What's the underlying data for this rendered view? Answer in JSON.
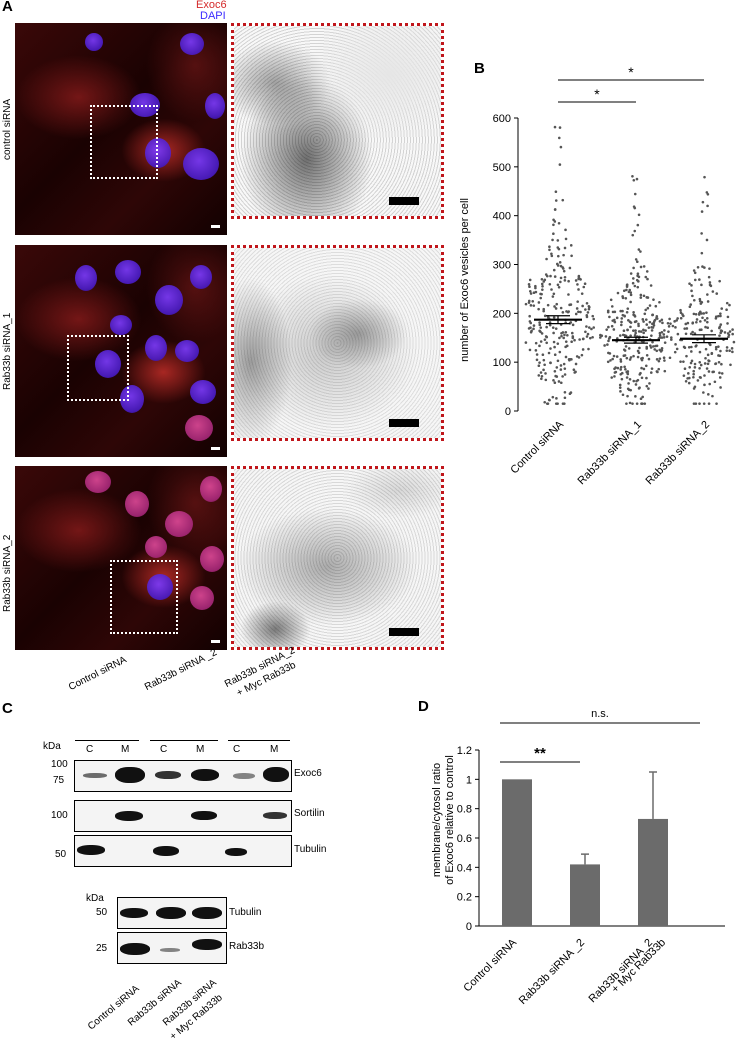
{
  "panelA": {
    "label": "A",
    "legend_exoc6": "Exoc6",
    "legend_dapi": "DAPI",
    "legend_exoc6_color": "#d42a2a",
    "legend_dapi_color": "#3b2bff",
    "rows": [
      "control siRNA",
      "Rab33b siRNA_1",
      "Rab33b siRNA_2"
    ]
  },
  "panelB": {
    "label": "B",
    "ylabel": "number of Exoc6 vesicles per cell",
    "yticks": [
      "0",
      "100",
      "200",
      "300",
      "400",
      "500",
      "600"
    ],
    "categories": [
      "Control siRNA",
      "Rab33b siRNA_1",
      "Rab33b siRNA_2"
    ],
    "sig1": "*",
    "sig2": "*"
  },
  "panelC": {
    "label": "C",
    "kda": "kDa",
    "groups": [
      "Control siRNA",
      "Rab33b siRNA _2",
      "Rab33b siRNA_2",
      "+ Myc Rab33b"
    ],
    "lanes": [
      "C",
      "M",
      "C",
      "M",
      "C",
      "M"
    ],
    "markers_top": [
      "100",
      "75",
      "100",
      "50"
    ],
    "proteins_top": [
      "Exoc6",
      "Sortilin",
      "Tubulin"
    ],
    "kda2": "kDa",
    "markers_bottom": [
      "50",
      "25"
    ],
    "proteins_bottom": [
      "Tubulin",
      "Rab33b"
    ],
    "bottom_lanes": [
      "Control siRNA",
      "Rab33b siRNA",
      "Rab33b siRNA",
      "+ Myc Rab33b"
    ]
  },
  "panelD": {
    "label": "D",
    "ylabel1": "membrane/cytosol ratio",
    "ylabel2": "of Exoc6 relative to control",
    "yticks": [
      "0",
      "0.2",
      "0.4",
      "0.6",
      "0.8",
      "1",
      "1.2"
    ],
    "categories": [
      "Control siRNA",
      "Rab33b siRNA _2",
      "Rab33b siRNA_2",
      "+ Myc Rab33b"
    ],
    "sig1": "**",
    "sig2": "n.s."
  },
  "chart_data": [
    {
      "type": "scatter",
      "ylabel": "number of Exoc6 vesicles per cell",
      "categories": [
        "Control siRNA",
        "Rab33b siRNA_1",
        "Rab33b siRNA_2"
      ],
      "mean": [
        187,
        145,
        148
      ],
      "sem": [
        8,
        6,
        8
      ],
      "ylim": [
        0,
        600
      ],
      "annotations": [
        {
          "between": [
            "Control siRNA",
            "Rab33b siRNA_1"
          ],
          "text": "*"
        },
        {
          "between": [
            "Control siRNA",
            "Rab33b siRNA_2"
          ],
          "text": "*"
        }
      ]
    },
    {
      "type": "bar",
      "ylabel": "membrane/cytosol ratio of Exoc6 relative to control",
      "categories": [
        "Control siRNA",
        "Rab33b siRNA _2",
        "Rab33b siRNA_2 + Myc Rab33b"
      ],
      "values": [
        1.0,
        0.42,
        0.73
      ],
      "errors": [
        0.0,
        0.07,
        0.32
      ],
      "ylim": [
        0,
        1.2
      ],
      "annotations": [
        {
          "between": [
            "Control siRNA",
            "Rab33b siRNA _2"
          ],
          "text": "**"
        },
        {
          "between": [
            "Control siRNA",
            "Rab33b siRNA_2 + Myc Rab33b"
          ],
          "text": "n.s."
        }
      ]
    }
  ]
}
